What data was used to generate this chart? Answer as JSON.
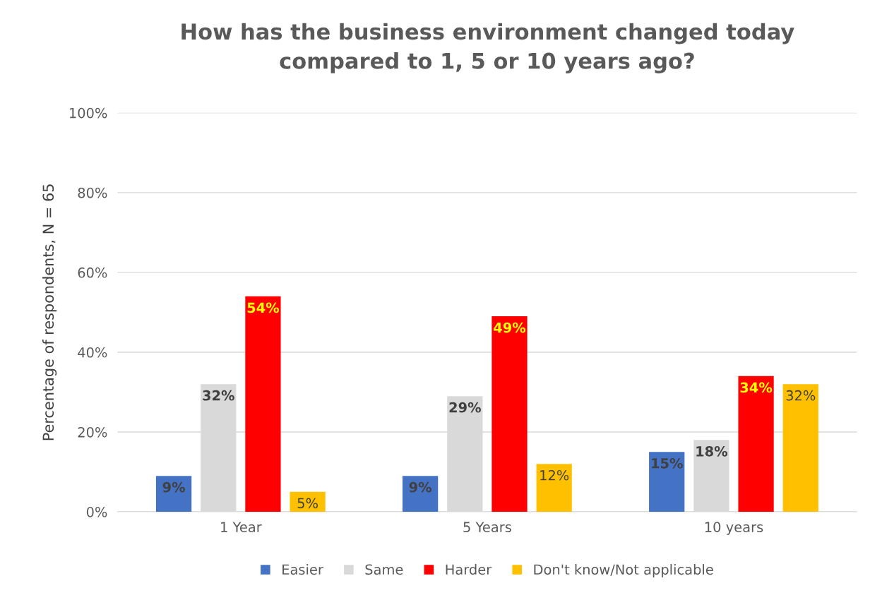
{
  "chart_data": {
    "type": "bar",
    "title": "How has the business environment changed today\ncompared to 1, 5 or 10 years ago?",
    "ylabel": "Percentage of respondents, N = 65",
    "categories": [
      "1 Year",
      "5 Years",
      "10 years"
    ],
    "series": [
      {
        "name": "Easier",
        "color": "#4472c4",
        "values": [
          9,
          9,
          15
        ],
        "value_labels": [
          "9%",
          "9%",
          "15%"
        ]
      },
      {
        "name": "Same",
        "color": "#d9d9d9",
        "values": [
          32,
          29,
          18
        ],
        "value_labels": [
          "32%",
          "29%",
          "18%"
        ]
      },
      {
        "name": "Harder",
        "color": "#ff0000",
        "values": [
          54,
          49,
          34
        ],
        "value_labels": [
          "54%",
          "49%",
          "34%"
        ]
      },
      {
        "name": "Don't know/Not applicable",
        "color": "#ffc000",
        "values": [
          5,
          12,
          32
        ],
        "value_labels": [
          "5%",
          "12%",
          "32%"
        ]
      }
    ],
    "ylim": [
      0,
      100
    ],
    "yticks": [
      {
        "value": 0,
        "label": "0%"
      },
      {
        "value": 20,
        "label": "20%"
      },
      {
        "value": 40,
        "label": "40%"
      },
      {
        "value": 60,
        "label": "60%"
      },
      {
        "value": 80,
        "label": "80%"
      },
      {
        "value": 100,
        "label": "100%"
      }
    ],
    "grid": "y",
    "legend": "bottom"
  }
}
